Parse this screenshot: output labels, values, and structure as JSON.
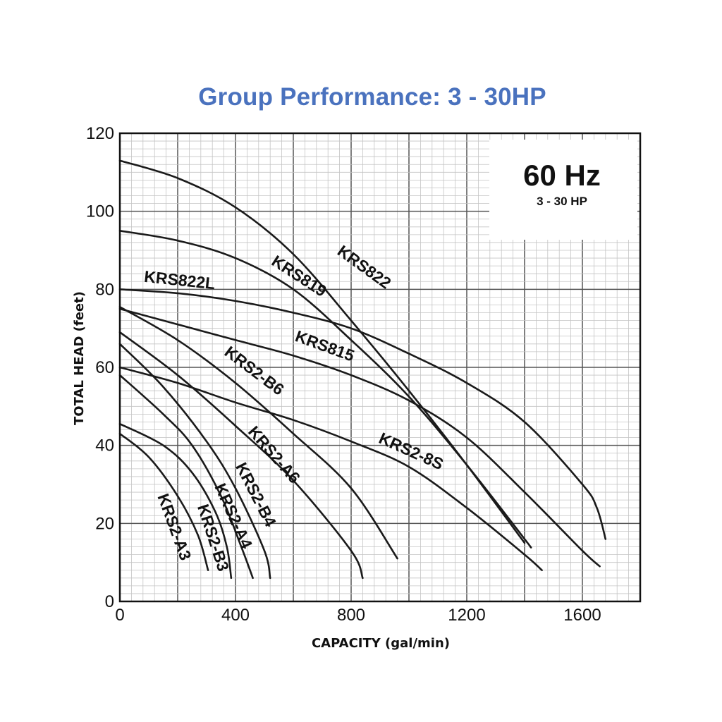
{
  "chart_data": {
    "type": "line",
    "title": "Group Performance: 3 - 30HP",
    "xlabel": "CAPACITY (gal/min)",
    "ylabel": "TOTAL HEAD (feet)",
    "xlim": [
      0,
      1800
    ],
    "ylim": [
      0,
      120
    ],
    "x_ticks": [
      0,
      400,
      800,
      1200,
      1600
    ],
    "y_ticks": [
      0,
      20,
      40,
      60,
      80,
      100,
      120
    ],
    "grid": true,
    "inset": {
      "main": "60 Hz",
      "sub": "3 - 30 HP"
    },
    "series": [
      {
        "name": "KRS822",
        "points": [
          [
            0,
            113
          ],
          [
            200,
            108.5
          ],
          [
            400,
            101
          ],
          [
            600,
            89
          ],
          [
            800,
            72
          ],
          [
            1000,
            54
          ],
          [
            1200,
            35
          ],
          [
            1400,
            15
          ]
        ]
      },
      {
        "name": "KRS819",
        "points": [
          [
            0,
            95
          ],
          [
            200,
            92.5
          ],
          [
            400,
            88
          ],
          [
            600,
            80
          ],
          [
            800,
            67
          ],
          [
            1000,
            52.5
          ],
          [
            1200,
            35
          ],
          [
            1400,
            16
          ],
          [
            1420,
            14
          ]
        ]
      },
      {
        "name": "KRS822L",
        "points": [
          [
            0,
            80
          ],
          [
            200,
            79
          ],
          [
            400,
            77
          ],
          [
            600,
            74
          ],
          [
            800,
            70
          ],
          [
            1000,
            63.5
          ],
          [
            1200,
            56
          ],
          [
            1400,
            46
          ],
          [
            1600,
            30
          ],
          [
            1650,
            24
          ],
          [
            1680,
            16
          ]
        ]
      },
      {
        "name": "KRS815",
        "points": [
          [
            0,
            75
          ],
          [
            200,
            71
          ],
          [
            400,
            67
          ],
          [
            600,
            63
          ],
          [
            800,
            58
          ],
          [
            1000,
            51.5
          ],
          [
            1200,
            42
          ],
          [
            1400,
            28
          ],
          [
            1600,
            13
          ],
          [
            1660,
            9
          ]
        ]
      },
      {
        "name": "KRS2-B6",
        "points": [
          [
            0,
            75.5
          ],
          [
            200,
            67
          ],
          [
            400,
            56
          ],
          [
            600,
            43
          ],
          [
            800,
            29
          ],
          [
            960,
            11
          ]
        ]
      },
      {
        "name": "KRS2-8S",
        "points": [
          [
            0,
            60
          ],
          [
            200,
            56
          ],
          [
            400,
            51
          ],
          [
            600,
            46.5
          ],
          [
            800,
            41
          ],
          [
            1000,
            34.5
          ],
          [
            1200,
            24
          ],
          [
            1400,
            12
          ],
          [
            1460,
            8
          ]
        ]
      },
      {
        "name": "KRS2-A6",
        "points": [
          [
            0,
            69
          ],
          [
            200,
            58
          ],
          [
            400,
            45
          ],
          [
            600,
            31
          ],
          [
            800,
            13
          ],
          [
            840,
            6
          ]
        ]
      },
      {
        "name": "KRS2-B4",
        "points": [
          [
            0,
            66
          ],
          [
            150,
            55
          ],
          [
            300,
            41
          ],
          [
            400,
            29
          ],
          [
            500,
            13
          ],
          [
            520,
            6
          ]
        ]
      },
      {
        "name": "KRS2-A4",
        "points": [
          [
            0,
            58
          ],
          [
            150,
            48
          ],
          [
            250,
            40
          ],
          [
            350,
            27
          ],
          [
            420,
            14
          ],
          [
            460,
            6
          ]
        ]
      },
      {
        "name": "KRS2-B3",
        "points": [
          [
            0,
            45.5
          ],
          [
            150,
            40
          ],
          [
            250,
            33
          ],
          [
            330,
            23
          ],
          [
            370,
            14
          ],
          [
            385,
            6
          ]
        ]
      },
      {
        "name": "KRS2-A3",
        "points": [
          [
            0,
            43
          ],
          [
            100,
            37
          ],
          [
            200,
            27
          ],
          [
            270,
            17
          ],
          [
            305,
            8
          ]
        ]
      }
    ]
  }
}
